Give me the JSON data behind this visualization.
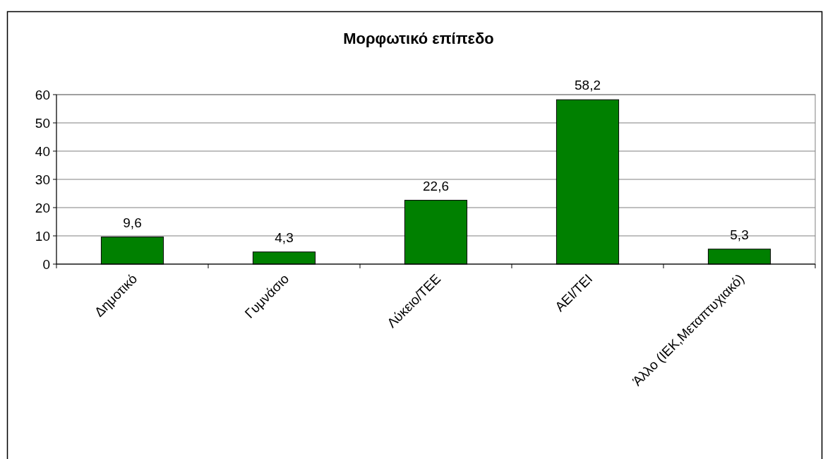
{
  "chart_data": {
    "type": "bar",
    "title": "Μορφωτικό επίπεδο",
    "categories": [
      "Δημοτικό",
      "Γυμνάσιο",
      "Λύκειο/ΤΕΕ",
      "ΑΕΙ/ΤΕΙ",
      "Άλλο (ΙΕΚ,Μεταπτυχιακό)"
    ],
    "values": [
      9.6,
      4.3,
      22.6,
      58.2,
      5.3
    ],
    "color": "#008000",
    "value_labels": [
      "9,6",
      "4,3",
      "22,6",
      "58,2",
      "5,3"
    ],
    "ylim": [
      0,
      60
    ],
    "yticks": [
      0,
      10,
      20,
      30,
      40,
      50,
      60
    ],
    "grid": "y"
  }
}
